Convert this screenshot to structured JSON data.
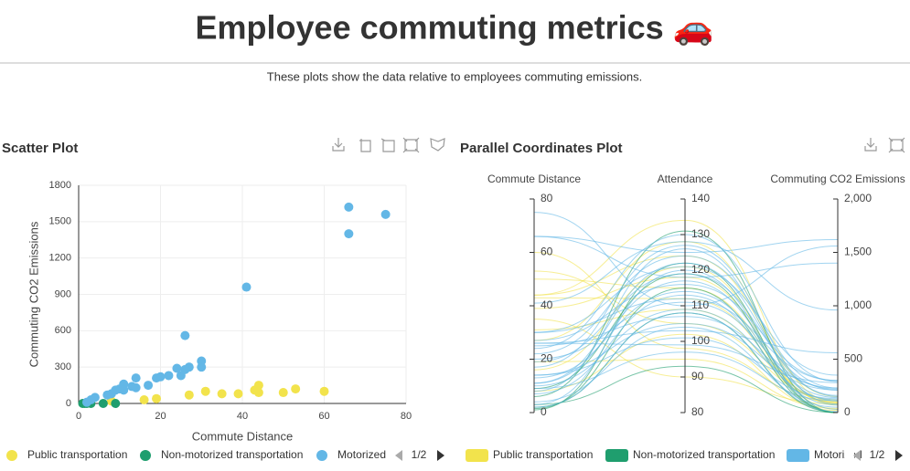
{
  "page": {
    "title": "Employee commuting metrics 🚗",
    "subtitle": "These plots show the data relative to employees commuting emissions."
  },
  "chart_data": [
    {
      "type": "scatter",
      "title": "Scatter Plot",
      "x_label": "Commute Distance",
      "y_label": "Commuting CO2 Emissions",
      "xlim": [
        0,
        80
      ],
      "xticks": [
        0,
        20,
        40,
        60,
        80
      ],
      "ylim": [
        0,
        1800
      ],
      "yticks": [
        0,
        300,
        600,
        900,
        1200,
        1500,
        1800
      ],
      "grid": true,
      "legend_page": "1/2",
      "series": [
        {
          "name": "Public transportation",
          "color": "#f2e34c",
          "x": [
            44,
            43,
            44,
            53,
            60,
            50,
            39,
            35,
            31,
            27,
            19,
            16,
            8
          ],
          "values": [
            150,
            110,
            90,
            120,
            100,
            90,
            80,
            80,
            100,
            70,
            40,
            30,
            20
          ]
        },
        {
          "name": "Non-motorized transportation",
          "color": "#1f9e6e",
          "x": [
            1,
            1.5,
            2,
            3,
            6,
            9
          ],
          "values": [
            0,
            0,
            0,
            0,
            0,
            0
          ]
        },
        {
          "name": "Motorized",
          "color": "#63b7e6",
          "x": [
            66,
            75,
            66,
            41,
            26,
            30,
            30,
            27,
            26,
            24,
            25,
            22,
            20,
            19,
            14,
            17,
            13,
            14,
            11,
            10,
            11,
            9,
            8,
            7,
            4,
            3,
            2
          ],
          "values": [
            1620,
            1560,
            1400,
            960,
            560,
            350,
            300,
            300,
            280,
            290,
            230,
            230,
            220,
            210,
            210,
            150,
            140,
            130,
            160,
            120,
            110,
            110,
            80,
            70,
            50,
            30,
            10
          ]
        }
      ]
    },
    {
      "type": "parallel",
      "title": "Parallel Coordinates Plot",
      "legend_page": "1/2",
      "dimensions": [
        {
          "name": "Commute Distance",
          "lim": [
            0,
            80
          ],
          "ticks": [
            0,
            20,
            40,
            60,
            80
          ]
        },
        {
          "name": "Attendance",
          "lim": [
            80,
            140
          ],
          "ticks": [
            80,
            90,
            100,
            110,
            120,
            130,
            140
          ]
        },
        {
          "name": "Commuting CO2 Emissions",
          "lim": [
            0,
            2000
          ],
          "ticks": [
            0,
            {
              "value": 500,
              "label": "500"
            },
            {
              "value": 1000,
              "label": "1,000"
            },
            {
              "value": 1500,
              "label": "1,500"
            },
            {
              "value": 2000,
              "label": "2,000"
            }
          ]
        }
      ],
      "series": [
        {
          "name": "Public transportation",
          "color": "#f2e34c",
          "rows": [
            [
              44,
              124,
              150
            ],
            [
              43,
              112,
              110
            ],
            [
              44,
              134,
              90
            ],
            [
              53,
              105,
              120
            ],
            [
              60,
              98,
              100
            ],
            [
              50,
              115,
              90
            ],
            [
              39,
              118,
              80
            ],
            [
              35,
              90,
              80
            ],
            [
              31,
              109,
              100
            ],
            [
              27,
              128,
              70
            ],
            [
              19,
              95,
              40
            ],
            [
              16,
              121,
              30
            ],
            [
              8,
              102,
              20
            ]
          ]
        },
        {
          "name": "Non-motorized transportation",
          "color": "#1f9e6e",
          "rows": [
            [
              1,
              122,
              0
            ],
            [
              1.5,
              115,
              0
            ],
            [
              2,
              108,
              0
            ],
            [
              3,
              93,
              0
            ],
            [
              6,
              131,
              0
            ],
            [
              9,
              119,
              0
            ]
          ]
        },
        {
          "name": "Motorized",
          "color": "#63b7e6",
          "rows": [
            [
              66,
              125,
              1620
            ],
            [
              75,
              110,
              1560
            ],
            [
              66,
              118,
              1400
            ],
            [
              41,
              128,
              960
            ],
            [
              26,
              103,
              560
            ],
            [
              30,
              121,
              350
            ],
            [
              30,
              112,
              300
            ],
            [
              27,
              116,
              300
            ],
            [
              26,
              99,
              280
            ],
            [
              24,
              130,
              290
            ],
            [
              25,
              107,
              230
            ],
            [
              22,
              124,
              230
            ],
            [
              20,
              111,
              220
            ],
            [
              19,
              119,
              210
            ],
            [
              14,
              105,
              210
            ],
            [
              17,
              127,
              150
            ],
            [
              13,
              114,
              140
            ],
            [
              14,
              101,
              130
            ],
            [
              11,
              122,
              160
            ],
            [
              10,
              109,
              120
            ],
            [
              11,
              117,
              110
            ],
            [
              9,
              97,
              110
            ],
            [
              8,
              126,
              80
            ],
            [
              7,
              113,
              70
            ],
            [
              4,
              104,
              50
            ],
            [
              3,
              120,
              30
            ],
            [
              2,
              108,
              10
            ]
          ]
        }
      ]
    }
  ]
}
